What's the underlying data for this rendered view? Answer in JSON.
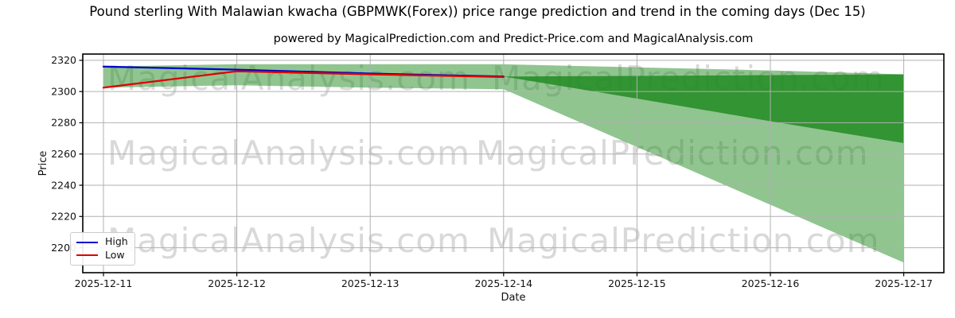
{
  "title": "Pound sterling With Malawian kwacha (GBPMWK(Forex)) price range prediction and trend in the coming days (Dec 15)",
  "subtitle": "powered by MagicalPrediction.com and Predict-Price.com and MagicalAnalysis.com",
  "watermarks": {
    "rows": [
      {
        "left": "MagicalAnalysis.com",
        "right": "MagicalPrediction.com"
      },
      {
        "left": "MagicalAnalysis.com",
        "right": "MagicalPrediction.com"
      },
      {
        "left": "MagicalAnalysis.com",
        "right": "MagicalPrediction.com"
      }
    ]
  },
  "legend": [
    {
      "label": "High",
      "color": "#0000cc"
    },
    {
      "label": "Low",
      "color": "#e00000"
    }
  ],
  "colors": {
    "outer_band": "rgba(34,139,34,0.5)",
    "inner_band": "rgba(34,139,34,0.85)",
    "grid": "#b0b0b0",
    "spine": "#000000",
    "text": "#111111"
  },
  "chart_data": {
    "type": "line",
    "title": "Pound sterling With Malawian kwacha (GBPMWK(Forex)) price range prediction and trend in the coming days (Dec 15)",
    "xlabel": "Date",
    "ylabel": "Price",
    "x": [
      "2025-12-11",
      "2025-12-12",
      "2025-12-13",
      "2025-12-14",
      "2025-12-15",
      "2025-12-16",
      "2025-12-17"
    ],
    "series": [
      {
        "name": "High",
        "color": "#0000cc",
        "values": [
          2316,
          2314,
          2311.5,
          2309.6,
          null,
          null,
          null
        ]
      },
      {
        "name": "Low",
        "color": "#e00000",
        "values": [
          2302.5,
          2313,
          2311,
          2309.3,
          null,
          null,
          null
        ]
      }
    ],
    "bands": [
      {
        "name": "outer-range",
        "color": "rgba(34,139,34,0.5)",
        "upper": [
          2316,
          2317.5,
          2317.5,
          2317.5,
          2315.5,
          2313.5,
          2311
        ],
        "lower": [
          2302.5,
          2304,
          2302.5,
          2301.5,
          2264.5,
          2227.5,
          2190.5
        ]
      },
      {
        "name": "inner-range",
        "color": "rgba(34,139,34,0.85)",
        "upper": [
          null,
          null,
          null,
          2309.6,
          2310,
          2310.5,
          2311
        ],
        "lower": [
          null,
          null,
          null,
          2309.6,
          2295.5,
          2281,
          2267
        ]
      }
    ],
    "ylim": [
      2184,
      2324
    ],
    "yticks": [
      2200,
      2220,
      2240,
      2260,
      2280,
      2300,
      2320
    ],
    "grid": true,
    "legend_position": "lower left"
  }
}
